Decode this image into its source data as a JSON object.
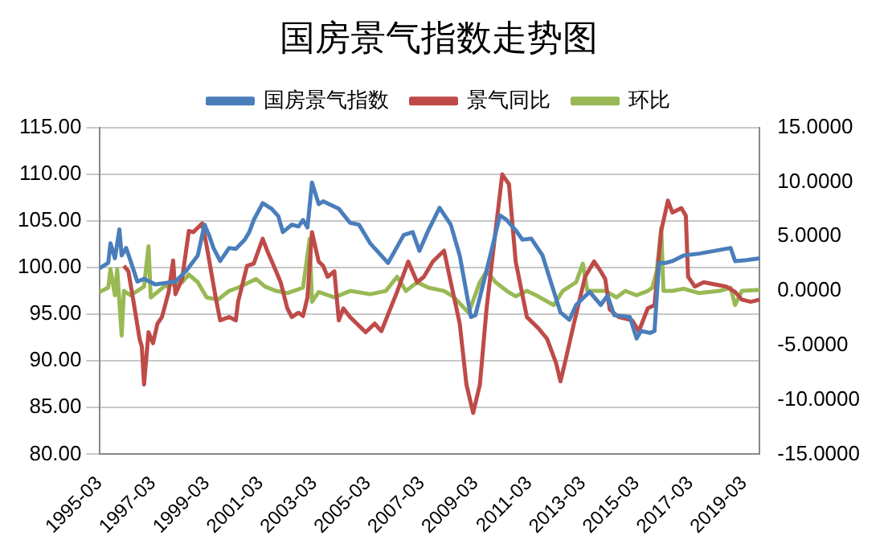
{
  "chart_data": {
    "type": "line",
    "title": "国房景气指数走势图",
    "legend": "top",
    "grid": "y",
    "marker": "none",
    "line_style": "solid",
    "xlim": [
      "1995-03",
      "2019-10"
    ],
    "xticks": [
      "1995-03",
      "1997-03",
      "1999-03",
      "2001-03",
      "2003-03",
      "2005-03",
      "2007-03",
      "2009-03",
      "2011-03",
      "2013-03",
      "2015-03",
      "2017-03",
      "2019-03"
    ],
    "ylim": [
      80,
      115
    ],
    "yticks": [
      {
        "value": 80,
        "label": "80.00"
      },
      {
        "value": 85,
        "label": "85.00"
      },
      {
        "value": 90,
        "label": "90.00"
      },
      {
        "value": 95,
        "label": "95.00"
      },
      {
        "value": 100,
        "label": "100.00"
      },
      {
        "value": 105,
        "label": "105.00"
      },
      {
        "value": 110,
        "label": "110.00"
      },
      {
        "value": 115,
        "label": "115.00"
      }
    ],
    "y2lim": [
      -15,
      15
    ],
    "y2ticks": [
      {
        "value": -15,
        "label": "-15.0000"
      },
      {
        "value": -10,
        "label": "-10.0000"
      },
      {
        "value": -5,
        "label": "-5.0000"
      },
      {
        "value": 0,
        "label": "0.0000"
      },
      {
        "value": 5,
        "label": "5.0000"
      },
      {
        "value": 10,
        "label": "10.0000"
      },
      {
        "value": 15,
        "label": "15.0000"
      }
    ],
    "series": [
      {
        "name": "国房景气指数",
        "color": "#4a7ebb",
        "x": [
          "1995-03",
          "1995-07",
          "1995-08",
          "1995-10",
          "1995-12",
          "1996-01",
          "1996-03",
          "1996-05",
          "1996-08",
          "1996-11",
          "1997-04",
          "1998-01",
          "1998-06",
          "1998-11",
          "1999-02",
          "1999-04",
          "1999-06",
          "1999-09",
          "2000-01",
          "2000-04",
          "2000-08",
          "2000-10",
          "2000-12",
          "2001-04",
          "2001-08",
          "2001-11",
          "2002-01",
          "2002-05",
          "2002-08",
          "2002-10",
          "2002-12",
          "2003-02",
          "2003-05",
          "2003-07",
          "2004-02",
          "2004-07",
          "2004-11",
          "2005-04",
          "2005-12",
          "2006-07",
          "2006-11",
          "2007-02",
          "2007-06",
          "2007-11",
          "2008-04",
          "2008-08",
          "2009-01",
          "2009-03",
          "2009-08",
          "2010-02",
          "2010-05",
          "2010-09",
          "2010-12",
          "2011-04",
          "2011-09",
          "2011-12",
          "2012-05",
          "2012-09",
          "2012-12",
          "2013-06",
          "2013-11",
          "2014-02",
          "2014-05",
          "2014-12",
          "2015-03",
          "2015-05",
          "2015-09",
          "2015-11",
          "2016-01",
          "2016-04",
          "2016-07",
          "2016-12",
          "2017-07",
          "2018-02",
          "2018-09",
          "2018-11",
          "2019-04",
          "2019-10"
        ],
        "values": [
          99.9,
          100.5,
          102.6,
          101,
          104.1,
          101.3,
          102.1,
          100.7,
          98.5,
          98.8,
          98.2,
          98.5,
          99.7,
          101.3,
          104.6,
          103.5,
          102.1,
          100.7,
          102.1,
          102,
          103,
          103.8,
          105.1,
          106.9,
          106.3,
          105.5,
          103.8,
          104.6,
          104.4,
          105.1,
          104.3,
          109.1,
          106.8,
          107.1,
          106.3,
          104.8,
          104.6,
          102.6,
          100.5,
          103.5,
          103.8,
          101.8,
          104,
          106.4,
          104.6,
          101.3,
          94.7,
          94.9,
          99.7,
          105.6,
          105.1,
          104,
          103,
          103.1,
          101.3,
          99,
          95.2,
          94.4,
          96,
          97.4,
          96,
          97,
          94.9,
          94.7,
          92.4,
          93.2,
          93,
          93.2,
          100.5,
          100.5,
          100.7,
          101.3,
          101.5,
          101.8,
          102.1,
          100.7,
          100.8,
          101
        ]
      },
      {
        "name": "景气同比",
        "color": "#be4b48",
        "axis": "y2",
        "x": [
          "1996-02",
          "1996-04",
          "1996-06",
          "1996-09",
          "1996-10",
          "1996-11",
          "1997-01",
          "1997-03",
          "1997-05",
          "1997-07",
          "1997-10",
          "1997-12",
          "1998-01",
          "1998-04",
          "1998-07",
          "1998-09",
          "1999-01",
          "1999-03",
          "1999-07",
          "1999-09",
          "2000-01",
          "2000-04",
          "2000-05",
          "2000-09",
          "2000-12",
          "2001-04",
          "2001-06",
          "2001-10",
          "2001-12",
          "2002-03",
          "2002-05",
          "2002-08",
          "2002-10",
          "2002-12",
          "2003-02",
          "2003-05",
          "2003-07",
          "2003-09",
          "2003-12",
          "2004-02",
          "2004-04",
          "2004-07",
          "2005-02",
          "2005-06",
          "2005-09",
          "2006-04",
          "2006-09",
          "2007-01",
          "2007-04",
          "2007-08",
          "2008-01",
          "2008-04",
          "2008-08",
          "2008-11",
          "2009-02",
          "2009-05",
          "2009-08",
          "2009-12",
          "2010-03",
          "2010-06",
          "2010-09",
          "2011-02",
          "2011-07",
          "2011-11",
          "2012-03",
          "2012-05",
          "2012-07",
          "2012-11",
          "2013-04",
          "2013-08",
          "2013-11",
          "2014-01",
          "2014-03",
          "2014-07",
          "2015-01",
          "2015-04",
          "2015-08",
          "2015-11",
          "2016-02",
          "2016-05",
          "2016-07",
          "2016-11",
          "2017-01",
          "2017-02",
          "2017-05",
          "2017-09",
          "2018-02",
          "2018-07",
          "2018-11",
          "2019-02",
          "2019-06",
          "2019-10"
        ],
        "values": [
          2.3,
          1.8,
          -0.6,
          -4.4,
          -5.1,
          -8.6,
          -3.8,
          -4.8,
          -3,
          -2.4,
          -0.1,
          2.8,
          -0.3,
          1.1,
          5.5,
          5.4,
          6.2,
          4.1,
          -0.6,
          -2.7,
          -2.4,
          -2.7,
          -1,
          2.3,
          2.5,
          4.8,
          3.7,
          1.8,
          0.8,
          -1.6,
          -2.4,
          -2,
          -2.3,
          -0.6,
          5.4,
          2.7,
          2.3,
          1.3,
          1.8,
          -2.7,
          -1.6,
          -2.4,
          -3.8,
          -3,
          -3.7,
          -0.1,
          2.7,
          0.8,
          1.3,
          2.7,
          3.7,
          0.8,
          -3,
          -8.6,
          -11.2,
          -8.6,
          -1.6,
          5.5,
          10.7,
          9.8,
          2.7,
          -2.4,
          -3.4,
          -4.4,
          -6.6,
          -8.3,
          -6.6,
          -3,
          1.3,
          2.7,
          1.8,
          1.1,
          -1.7,
          -2.4,
          -2.7,
          -3.7,
          -1.6,
          -1.3,
          5.5,
          8.3,
          7.2,
          7.6,
          6.9,
          1.3,
          0.4,
          0.8,
          0.6,
          0.4,
          -0.1,
          -0.8,
          -1,
          -0.8
        ]
      },
      {
        "name": "环比",
        "color": "#98b954",
        "axis": "y2",
        "x": [
          "1995-03",
          "1995-07",
          "1995-08",
          "1995-10",
          "1995-11",
          "1996-01",
          "1996-02",
          "1996-05",
          "1996-08",
          "1996-11",
          "1997-01",
          "1997-02",
          "1997-08",
          "1998-04",
          "1998-07",
          "1998-11",
          "1999-03",
          "1999-08",
          "2000-01",
          "2000-05",
          "2001-01",
          "2001-05",
          "2001-10",
          "2002-03",
          "2002-10",
          "2003-01",
          "2003-02",
          "2003-05",
          "2003-12",
          "2004-07",
          "2005-04",
          "2005-11",
          "2006-04",
          "2006-08",
          "2007-01",
          "2007-06",
          "2008-01",
          "2008-05",
          "2008-12",
          "2009-05",
          "2009-08",
          "2009-12",
          "2010-05",
          "2010-09",
          "2011-02",
          "2011-07",
          "2012-02",
          "2012-06",
          "2012-12",
          "2013-03",
          "2013-05",
          "2014-01",
          "2014-06",
          "2014-10",
          "2015-03",
          "2015-08",
          "2015-10",
          "2015-12",
          "2016-02",
          "2016-03",
          "2016-07",
          "2016-12",
          "2017-07",
          "2018-04",
          "2018-09",
          "2018-11",
          "2019-02",
          "2019-10"
        ],
        "values": [
          -0.1,
          0.3,
          2,
          -0.4,
          2,
          -4.1,
          0,
          -0.4,
          0,
          0.4,
          4.1,
          -0.6,
          0.4,
          0.8,
          1.5,
          0.8,
          -0.6,
          -0.8,
          0,
          0.3,
          1.1,
          0.4,
          0,
          -0.2,
          0.3,
          4.8,
          -1,
          -0.1,
          -0.6,
          0,
          -0.3,
          0,
          1.3,
          0,
          0.8,
          0.3,
          0,
          -0.5,
          -2,
          0.8,
          1.8,
          0.8,
          0,
          -0.5,
          0,
          -0.5,
          -1.3,
          0,
          0.8,
          2.5,
          0,
          0,
          -0.6,
          0,
          -0.4,
          0,
          0.3,
          1.8,
          5.8,
          0,
          0,
          0.2,
          -0.2,
          0,
          0.3,
          -1.3,
          0,
          0.1
        ]
      }
    ]
  }
}
